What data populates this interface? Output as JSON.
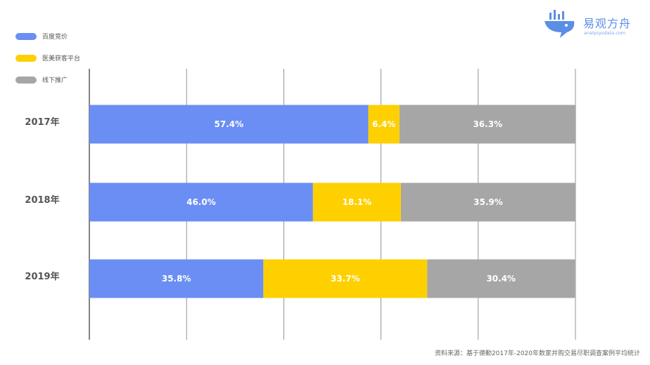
{
  "chart_data": {
    "type": "bar",
    "orientation": "horizontal",
    "stacked": true,
    "categories": [
      "2017年",
      "2018年",
      "2019年"
    ],
    "series": [
      {
        "name": "百度竞价",
        "color": "#6a8ef3",
        "values": [
          57.4,
          46.0,
          35.8
        ],
        "labels": [
          "57.4%",
          "46.0%",
          "35.8%"
        ]
      },
      {
        "name": "医美获客平台",
        "color": "#fed000",
        "values": [
          6.4,
          18.1,
          33.7
        ],
        "labels": [
          "6.4%",
          "18.1%",
          "33.7%"
        ]
      },
      {
        "name": "线下推广",
        "color": "#a6a6a6",
        "values": [
          36.3,
          35.9,
          30.4
        ],
        "labels": [
          "36.3%",
          "35.9%",
          "30.4%"
        ]
      }
    ],
    "xlim": [
      0,
      100
    ],
    "grid": true,
    "legend": "top-left"
  },
  "logo": {
    "name": "易观方舟",
    "domain": "analysysdata.com"
  },
  "source": "资料来源：基于德勤2017年-2020年数家并购交易尽职调查案例平均统计"
}
